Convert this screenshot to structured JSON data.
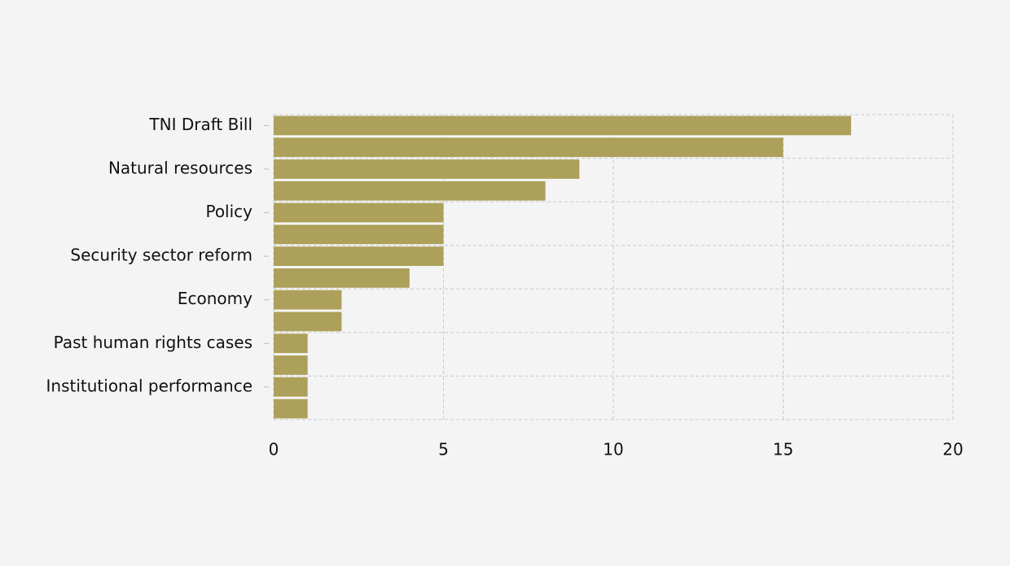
{
  "chart_data": {
    "type": "hbar",
    "categories": [
      "TNI Draft Bill",
      null,
      "Natural resources",
      null,
      "Policy",
      null,
      "Security sector reform",
      null,
      "Economy",
      null,
      "Past human rights cases",
      null,
      "Institutional performance",
      null
    ],
    "values": [
      17,
      15,
      9,
      8,
      5,
      5,
      5,
      4,
      2,
      2,
      1,
      1,
      1,
      1
    ],
    "color": "#ada05a",
    "xlim": [
      0,
      20
    ],
    "xticks": [
      0,
      5,
      10,
      15,
      20
    ],
    "grid": true
  }
}
